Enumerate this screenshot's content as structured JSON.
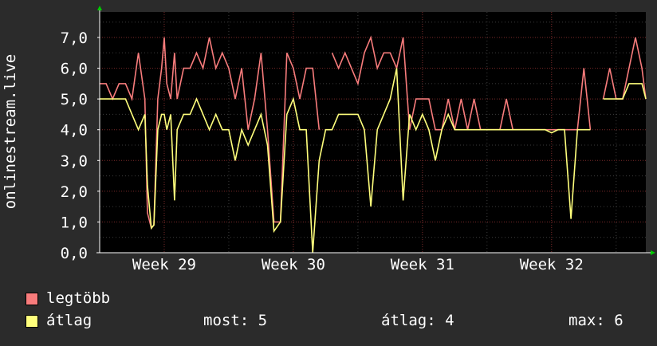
{
  "chart_data": {
    "type": "line",
    "ylabel": "onlinestream.live",
    "ylim": [
      0,
      8
    ],
    "y_ticks": [
      0,
      1,
      2,
      3,
      4,
      5,
      6,
      7
    ],
    "y_tick_labels": [
      "0,0",
      "1,0",
      "2,0",
      "3,0",
      "4,0",
      "5,0",
      "6,0",
      "7,0"
    ],
    "xlim": [
      28.5,
      32.73
    ],
    "x_ticks": [
      {
        "value": 29,
        "label": "Week 29"
      },
      {
        "value": 30,
        "label": "Week 30"
      },
      {
        "value": 31,
        "label": "Week 31"
      },
      {
        "value": 32,
        "label": "Week 32"
      }
    ],
    "grid": true,
    "legend_position": "bottom-left",
    "series": [
      {
        "name": "legtöbb",
        "color": "#f87c7c",
        "x": [
          28.5,
          28.55,
          28.6,
          28.65,
          28.7,
          28.75,
          28.8,
          28.85,
          28.87,
          28.9,
          28.92,
          28.95,
          28.98,
          29.0,
          29.02,
          29.05,
          29.08,
          29.1,
          29.15,
          29.2,
          29.25,
          29.3,
          29.35,
          29.4,
          29.45,
          29.5,
          29.55,
          29.6,
          29.65,
          29.7,
          29.75,
          29.8,
          29.85,
          29.9,
          29.95,
          30.0,
          30.05,
          30.1,
          30.15,
          30.2,
          30.25,
          30.3,
          30.35,
          30.4,
          30.45,
          30.5,
          30.55,
          30.6,
          30.65,
          30.7,
          30.75,
          30.8,
          30.85,
          30.9,
          30.95,
          31.0,
          31.05,
          31.1,
          31.15,
          31.2,
          31.25,
          31.3,
          31.35,
          31.4,
          31.45,
          31.5,
          31.55,
          31.6,
          31.65,
          31.7,
          31.75,
          31.8,
          31.85,
          31.9,
          31.95,
          32.0,
          32.05,
          32.1,
          32.15,
          32.2,
          32.25,
          32.3,
          32.35,
          32.4,
          32.45,
          32.5,
          32.55,
          32.6,
          32.65,
          32.7,
          32.73
        ],
        "values": [
          5.5,
          5.5,
          5.0,
          5.5,
          5.5,
          5.0,
          6.5,
          5.0,
          1.3,
          0.8,
          0.9,
          5.0,
          6.0,
          7.0,
          5.5,
          5.0,
          6.5,
          5.0,
          6.0,
          6.0,
          6.5,
          6.0,
          7.0,
          6.0,
          6.5,
          6.0,
          5.0,
          6.0,
          4.0,
          5.0,
          6.5,
          4.0,
          1.0,
          1.0,
          6.5,
          6.0,
          5.0,
          6.0,
          6.0,
          4.0,
          null,
          6.5,
          6.0,
          6.5,
          6.0,
          5.5,
          6.5,
          7.0,
          6.0,
          6.5,
          6.5,
          6.0,
          7.0,
          4.0,
          5.0,
          5.0,
          5.0,
          4.0,
          4.0,
          5.0,
          4.0,
          5.0,
          4.0,
          5.0,
          4.0,
          4.0,
          4.0,
          4.0,
          5.0,
          4.0,
          4.0,
          4.0,
          4.0,
          4.0,
          4.0,
          4.0,
          4.0,
          4.0,
          4.0,
          4.0,
          6.0,
          4.0,
          null,
          5.0,
          6.0,
          5.0,
          5.0,
          6.0,
          7.0,
          6.0,
          5.0
        ]
      },
      {
        "name": "átlag",
        "color": "#ffff7c",
        "x": [
          28.5,
          28.55,
          28.6,
          28.65,
          28.7,
          28.75,
          28.8,
          28.85,
          28.87,
          28.9,
          28.92,
          28.95,
          28.98,
          29.0,
          29.02,
          29.05,
          29.08,
          29.1,
          29.15,
          29.2,
          29.25,
          29.3,
          29.35,
          29.4,
          29.45,
          29.5,
          29.55,
          29.6,
          29.65,
          29.7,
          29.75,
          29.8,
          29.85,
          29.9,
          29.95,
          30.0,
          30.05,
          30.1,
          30.15,
          30.2,
          30.25,
          30.3,
          30.35,
          30.4,
          30.45,
          30.5,
          30.55,
          30.6,
          30.65,
          30.7,
          30.75,
          30.8,
          30.85,
          30.9,
          30.95,
          31.0,
          31.05,
          31.1,
          31.15,
          31.2,
          31.25,
          31.3,
          31.35,
          31.4,
          31.45,
          31.5,
          31.55,
          31.6,
          31.65,
          31.7,
          31.75,
          31.8,
          31.85,
          31.9,
          31.95,
          32.0,
          32.05,
          32.1,
          32.15,
          32.2,
          32.25,
          32.3,
          32.35,
          32.4,
          32.45,
          32.5,
          32.55,
          32.6,
          32.65,
          32.7,
          32.73
        ],
        "values": [
          5.0,
          5.0,
          5.0,
          5.0,
          5.0,
          4.5,
          4.0,
          4.5,
          2.2,
          0.8,
          0.9,
          4.0,
          4.5,
          4.5,
          4.0,
          4.5,
          1.7,
          4.0,
          4.5,
          4.5,
          5.0,
          4.5,
          4.0,
          4.5,
          4.0,
          4.0,
          3.0,
          4.0,
          3.5,
          4.0,
          4.5,
          3.5,
          0.7,
          1.0,
          4.5,
          5.0,
          4.0,
          4.0,
          0.0,
          3.0,
          4.0,
          4.0,
          4.5,
          4.5,
          4.5,
          4.5,
          4.0,
          1.5,
          4.0,
          4.5,
          5.0,
          6.0,
          1.7,
          4.5,
          4.0,
          4.5,
          4.0,
          3.0,
          4.0,
          4.5,
          4.0,
          4.0,
          4.0,
          4.0,
          4.0,
          4.0,
          4.0,
          4.0,
          4.0,
          4.0,
          4.0,
          4.0,
          4.0,
          4.0,
          4.0,
          3.9,
          4.0,
          4.0,
          1.1,
          4.0,
          4.0,
          4.0,
          null,
          5.0,
          5.0,
          5.0,
          5.0,
          5.5,
          5.5,
          5.5,
          5.0
        ]
      }
    ]
  },
  "legend": {
    "items": [
      {
        "label": "legtöbb",
        "color": "#f87c7c"
      },
      {
        "label": "átlag",
        "color": "#ffff7c"
      }
    ],
    "stats": {
      "most": "most: 5",
      "atlag": "átlag: 4",
      "max": "max: 6"
    }
  }
}
